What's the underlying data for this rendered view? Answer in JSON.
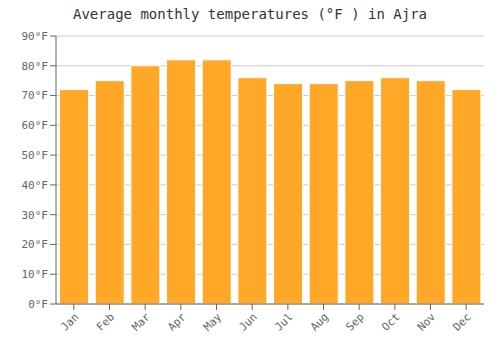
{
  "chart_data": {
    "type": "bar",
    "title": "Average monthly temperatures (°F ) in Ajra",
    "categories": [
      "Jan",
      "Feb",
      "Mar",
      "Apr",
      "May",
      "Jun",
      "Jul",
      "Aug",
      "Sep",
      "Oct",
      "Nov",
      "Dec"
    ],
    "values": [
      72,
      75,
      80,
      82,
      82,
      76,
      74,
      74,
      75,
      76,
      75,
      72
    ],
    "color": "#FFA726",
    "ylim": [
      0,
      90
    ],
    "yticks": [
      {
        "value": 0,
        "label": "0°F"
      },
      {
        "value": 10,
        "label": "10°F"
      },
      {
        "value": 20,
        "label": "20°F"
      },
      {
        "value": 30,
        "label": "30°F"
      },
      {
        "value": 40,
        "label": "40°F"
      },
      {
        "value": 50,
        "label": "50°F"
      },
      {
        "value": 60,
        "label": "60°F"
      },
      {
        "value": 70,
        "label": "70°F"
      },
      {
        "value": 80,
        "label": "80°F"
      },
      {
        "value": 90,
        "label": "90°F"
      }
    ],
    "grid": true
  }
}
